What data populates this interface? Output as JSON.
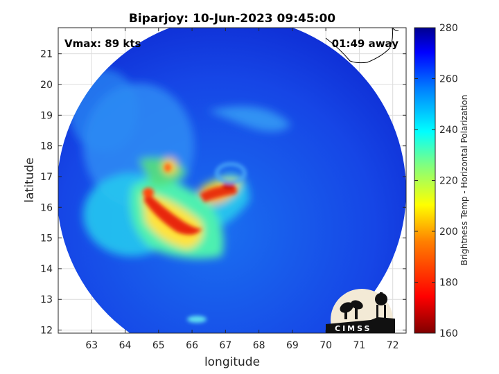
{
  "title": "Biparjoy: 10-Jun-2023 09:45:00",
  "annotations": {
    "vmax": "Vmax: 89 kts",
    "time_away": "01:49 away"
  },
  "axes": {
    "xlabel": "longitude",
    "ylabel": "latitude",
    "xticks": [
      "63",
      "64",
      "65",
      "66",
      "67",
      "68",
      "69",
      "70",
      "71",
      "72"
    ],
    "yticks": [
      "12",
      "13",
      "14",
      "15",
      "16",
      "17",
      "18",
      "19",
      "20",
      "21"
    ],
    "xlim": [
      62.0,
      72.4
    ],
    "ylim": [
      11.9,
      21.85
    ]
  },
  "colorbar": {
    "label": "Brightness Temp - Horizontal Polarization",
    "ticks": [
      "160",
      "180",
      "200",
      "220",
      "240",
      "260",
      "280"
    ],
    "range": [
      160,
      280
    ],
    "colormap": "jet"
  },
  "logo": {
    "text": "CIMSS"
  },
  "storm_center": {
    "lon": 67.3,
    "lat": 16.8
  }
}
